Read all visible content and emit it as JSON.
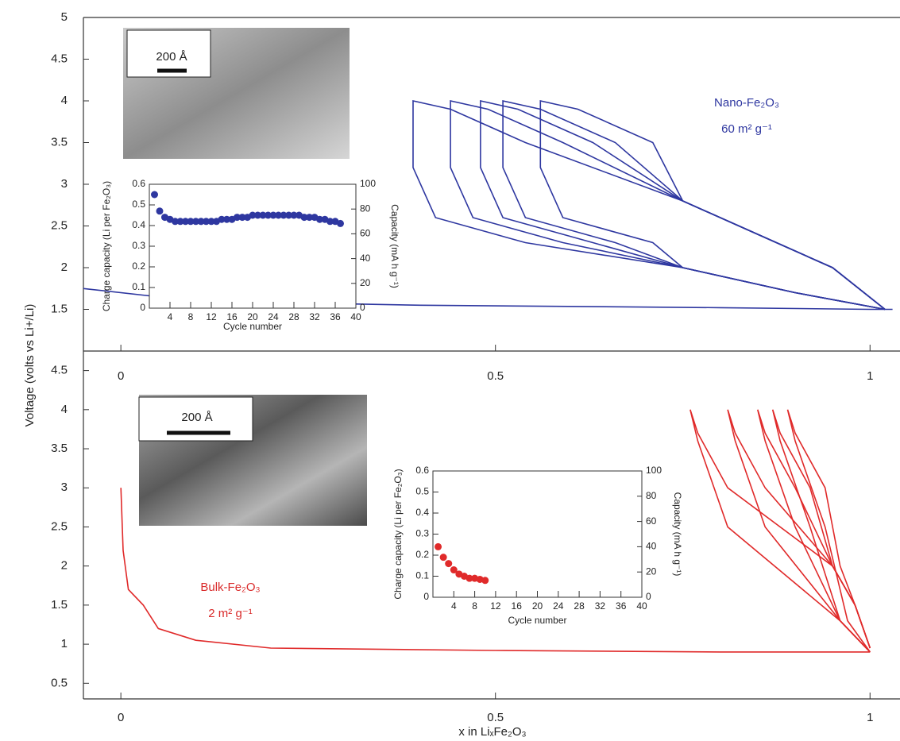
{
  "chart_data": [
    {
      "type": "line",
      "ylabel": "Voltage (volts vs Li+/Li)",
      "annotations": [
        "Nano-Fe₂O₃",
        "60 m² g⁻¹"
      ],
      "image_scale": "200 Å",
      "xlim": [
        -0.05,
        1.04
      ],
      "xticks": [
        0,
        0.5,
        1
      ],
      "ylim": [
        1,
        5
      ],
      "yticks": [
        1.5,
        2,
        2.5,
        3,
        3.5,
        4,
        4.5,
        5
      ],
      "series": [
        {
          "color": "#2e37a0",
          "x": [
            -0.05,
            0.1,
            0.4,
            0.8,
            1.0,
            1.03
          ],
          "values": [
            1.75,
            1.6,
            1.55,
            1.52,
            1.5,
            1.5
          ]
        },
        {
          "color": "#2e37a0",
          "x": [
            1.02,
            0.95,
            0.85,
            0.75,
            0.54,
            0.44,
            0.39,
            0.39,
            0.42,
            0.54,
            0.75,
            0.9,
            1.02
          ],
          "values": [
            1.5,
            2.0,
            2.4,
            2.8,
            3.5,
            3.9,
            4.0,
            3.2,
            2.6,
            2.3,
            2.0,
            1.7,
            1.5
          ]
        },
        {
          "color": "#2e37a0",
          "x": [
            1.02,
            0.95,
            0.85,
            0.75,
            0.59,
            0.49,
            0.44,
            0.44,
            0.47,
            0.59,
            0.75,
            0.9,
            1.02
          ],
          "values": [
            1.5,
            2.0,
            2.4,
            2.8,
            3.5,
            3.9,
            4.0,
            3.2,
            2.6,
            2.3,
            2.0,
            1.7,
            1.5
          ]
        },
        {
          "color": "#2e37a0",
          "x": [
            1.02,
            0.95,
            0.85,
            0.75,
            0.63,
            0.53,
            0.48,
            0.48,
            0.51,
            0.63,
            0.75,
            0.9,
            1.02
          ],
          "values": [
            1.5,
            2.0,
            2.4,
            2.8,
            3.5,
            3.9,
            4.0,
            3.2,
            2.6,
            2.3,
            2.0,
            1.7,
            1.5
          ]
        },
        {
          "color": "#2e37a0",
          "x": [
            1.02,
            0.95,
            0.85,
            0.75,
            0.66,
            0.56,
            0.51,
            0.51,
            0.54,
            0.66,
            0.75,
            0.9,
            1.02
          ],
          "values": [
            1.5,
            2.0,
            2.4,
            2.8,
            3.5,
            3.9,
            4.0,
            3.2,
            2.6,
            2.3,
            2.0,
            1.7,
            1.5
          ]
        },
        {
          "color": "#2e37a0",
          "x": [
            1.02,
            0.95,
            0.85,
            0.75,
            0.71,
            0.61,
            0.56,
            0.56,
            0.59,
            0.71,
            0.75,
            0.9,
            1.02
          ],
          "values": [
            1.5,
            2.0,
            2.4,
            2.8,
            3.5,
            3.9,
            4.0,
            3.2,
            2.6,
            2.3,
            2.0,
            1.7,
            1.5
          ]
        }
      ]
    },
    {
      "type": "line",
      "xlabel": "x in LiₓFe₂O₃",
      "annotations": [
        "Bulk-Fe₂O₃",
        "2 m² g⁻¹"
      ],
      "image_scale": "200 Å",
      "xlim": [
        -0.05,
        1.04
      ],
      "xticks": [
        0,
        0.5,
        1
      ],
      "ylim": [
        0.3,
        4.75
      ],
      "yticks": [
        0.5,
        1,
        1.5,
        2,
        2.5,
        3,
        3.5,
        4,
        4.5
      ],
      "series": [
        {
          "color": "#e02a2a",
          "x": [
            0,
            0.003,
            0.01,
            0.03,
            0.05,
            0.1,
            0.2,
            0.5,
            0.8,
            1.0
          ],
          "values": [
            3.0,
            2.2,
            1.7,
            1.5,
            1.2,
            1.05,
            0.95,
            0.92,
            0.9,
            0.9
          ]
        },
        {
          "color": "#e02a2a",
          "x": [
            1.0,
            0.98,
            0.95,
            0.81,
            0.77,
            0.76,
            0.77,
            0.81,
            0.96,
            1.0
          ],
          "values": [
            0.95,
            1.5,
            2.0,
            3.0,
            3.7,
            4.0,
            3.6,
            2.5,
            1.3,
            0.9
          ]
        },
        {
          "color": "#e02a2a",
          "x": [
            1.0,
            0.98,
            0.95,
            0.86,
            0.82,
            0.81,
            0.82,
            0.86,
            0.96,
            1.0
          ],
          "values": [
            0.95,
            1.5,
            2.0,
            3.0,
            3.7,
            4.0,
            3.6,
            2.5,
            1.3,
            0.9
          ]
        },
        {
          "color": "#e02a2a",
          "x": [
            1.0,
            0.98,
            0.95,
            0.9,
            0.86,
            0.85,
            0.86,
            0.9,
            0.96,
            1.0
          ],
          "values": [
            0.95,
            1.5,
            2.0,
            3.0,
            3.7,
            4.0,
            3.6,
            2.5,
            1.3,
            0.9
          ]
        },
        {
          "color": "#e02a2a",
          "x": [
            1.0,
            0.98,
            0.95,
            0.92,
            0.88,
            0.87,
            0.88,
            0.92,
            0.96,
            1.0
          ],
          "values": [
            0.95,
            1.5,
            2.0,
            3.0,
            3.7,
            4.0,
            3.6,
            2.5,
            1.3,
            0.9
          ]
        },
        {
          "color": "#e02a2a",
          "x": [
            1.0,
            0.98,
            0.96,
            0.94,
            0.9,
            0.89,
            0.9,
            0.94,
            0.97,
            1.0
          ],
          "values": [
            0.95,
            1.5,
            2.0,
            3.0,
            3.7,
            4.0,
            3.6,
            2.5,
            1.3,
            0.9
          ]
        }
      ]
    },
    {
      "type": "scatter",
      "xlabel": "Cycle number",
      "ylabel": "Charge capacity (Li per Fe₂O₃)",
      "y2label": "Capacity (mA h g⁻¹)",
      "xlim": [
        0,
        40
      ],
      "xticks": [
        4,
        8,
        12,
        16,
        20,
        24,
        28,
        32,
        36,
        40
      ],
      "ylim": [
        0,
        0.6
      ],
      "yticks": [
        0,
        0.1,
        0.2,
        0.3,
        0.4,
        0.5,
        0.6
      ],
      "y2lim": [
        0,
        100
      ],
      "y2ticks": [
        0,
        20,
        40,
        60,
        80,
        100
      ],
      "series": [
        {
          "color": "#2e37a0",
          "x": [
            1,
            2,
            3,
            4,
            5,
            6,
            7,
            8,
            9,
            10,
            11,
            12,
            13,
            14,
            15,
            16,
            17,
            18,
            19,
            20,
            21,
            22,
            23,
            24,
            25,
            26,
            27,
            28,
            29,
            30,
            31,
            32,
            33,
            34,
            35,
            36,
            37
          ],
          "values": [
            0.55,
            0.47,
            0.44,
            0.43,
            0.42,
            0.42,
            0.42,
            0.42,
            0.42,
            0.42,
            0.42,
            0.42,
            0.42,
            0.43,
            0.43,
            0.43,
            0.44,
            0.44,
            0.44,
            0.45,
            0.45,
            0.45,
            0.45,
            0.45,
            0.45,
            0.45,
            0.45,
            0.45,
            0.45,
            0.44,
            0.44,
            0.44,
            0.43,
            0.43,
            0.42,
            0.42,
            0.41
          ]
        }
      ]
    },
    {
      "type": "scatter",
      "xlabel": "Cycle number",
      "ylabel": "Charge capacity (Li per Fe₂O₃)",
      "y2label": "Capacity (mA h g⁻¹)",
      "xlim": [
        0,
        40
      ],
      "xticks": [
        4,
        8,
        12,
        16,
        20,
        24,
        28,
        32,
        36,
        40
      ],
      "ylim": [
        0,
        0.6
      ],
      "yticks": [
        0,
        0.1,
        0.2,
        0.3,
        0.4,
        0.5,
        0.6
      ],
      "y2lim": [
        0,
        100
      ],
      "y2ticks": [
        0,
        20,
        40,
        60,
        80,
        100
      ],
      "series": [
        {
          "color": "#e02a2a",
          "x": [
            1,
            2,
            3,
            4,
            5,
            6,
            7,
            8,
            9,
            10
          ],
          "values": [
            0.24,
            0.19,
            0.16,
            0.13,
            0.11,
            0.1,
            0.09,
            0.09,
            0.085,
            0.08
          ]
        }
      ]
    }
  ]
}
